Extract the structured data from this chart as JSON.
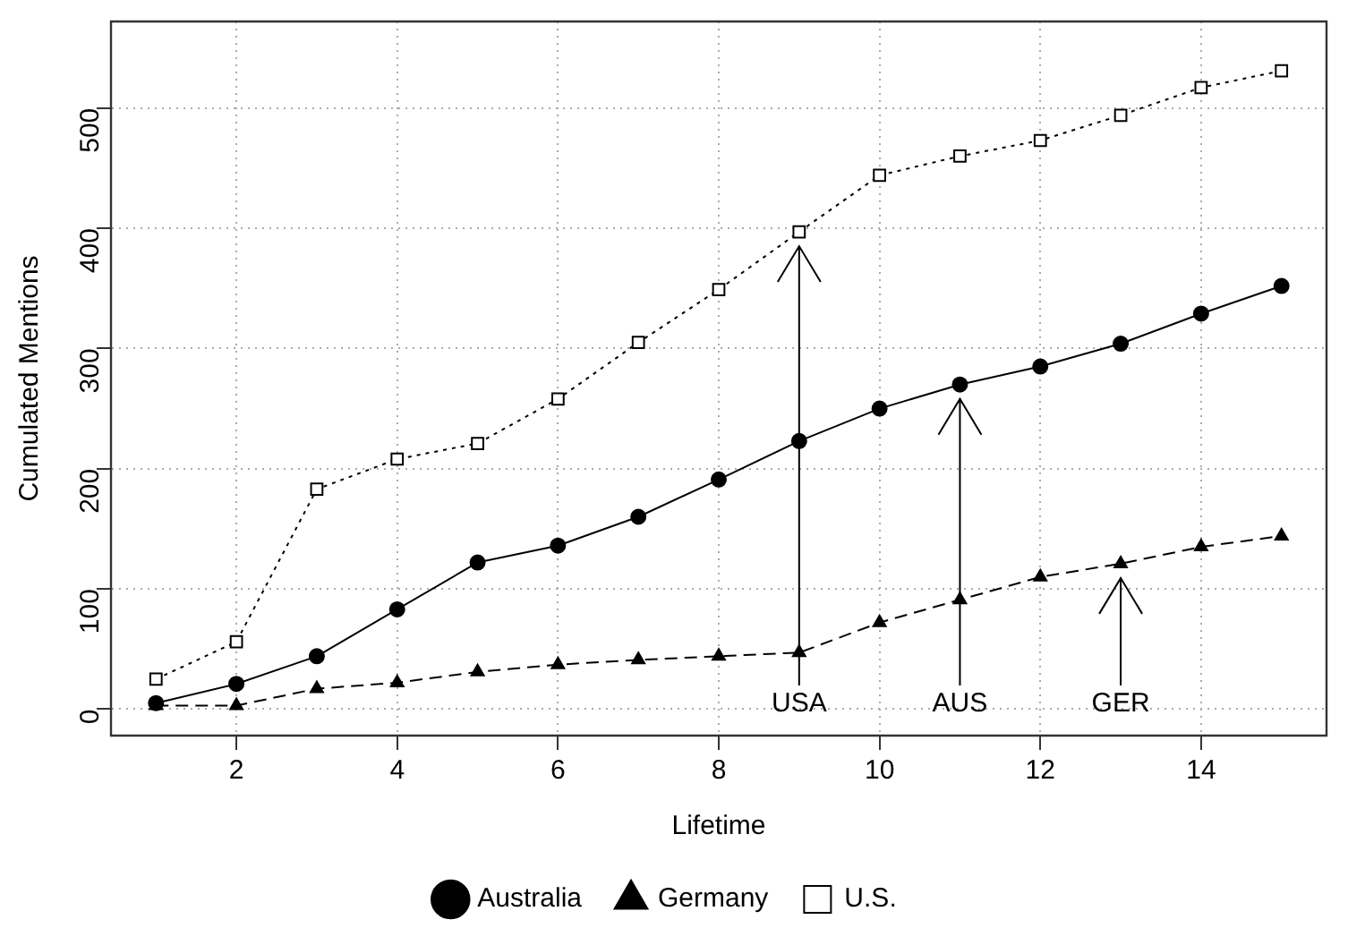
{
  "chart_data": {
    "type": "line",
    "xlabel": "Lifetime",
    "ylabel": "Cumulated Mentions",
    "x": [
      1,
      2,
      3,
      4,
      5,
      6,
      7,
      8,
      9,
      10,
      11,
      12,
      13,
      14,
      15
    ],
    "xlim": [
      0.44,
      15.56
    ],
    "xticks": [
      2,
      4,
      6,
      8,
      10,
      12,
      14
    ],
    "ylim": [
      -22,
      572
    ],
    "yticks": [
      0,
      100,
      200,
      300,
      400,
      500
    ],
    "grid": true,
    "legend": "bottom",
    "series": [
      {
        "name": "Australia",
        "color": "#000000",
        "marker": "circle",
        "line_style": "solid",
        "values": [
          5,
          21,
          44,
          83,
          122,
          136,
          160,
          191,
          223,
          250,
          270,
          285,
          304,
          329,
          352
        ]
      },
      {
        "name": "Germany",
        "color": "#000000",
        "marker": "triangle",
        "line_style": "dashed",
        "values": [
          3,
          3,
          17,
          22,
          31,
          37,
          41,
          44,
          47,
          72,
          91,
          110,
          121,
          135,
          144
        ]
      },
      {
        "name": "U.S.",
        "color": "#000000",
        "marker": "square",
        "line_style": "dotted",
        "values": [
          25,
          56,
          183,
          208,
          221,
          258,
          305,
          349,
          397,
          444,
          460,
          473,
          494,
          517,
          531
        ]
      }
    ],
    "annotations": [
      {
        "text": "USA",
        "x": 9,
        "y": 397
      },
      {
        "text": "AUS",
        "x": 11,
        "y": 270
      },
      {
        "text": "GER",
        "x": 13,
        "y": 121
      }
    ]
  }
}
